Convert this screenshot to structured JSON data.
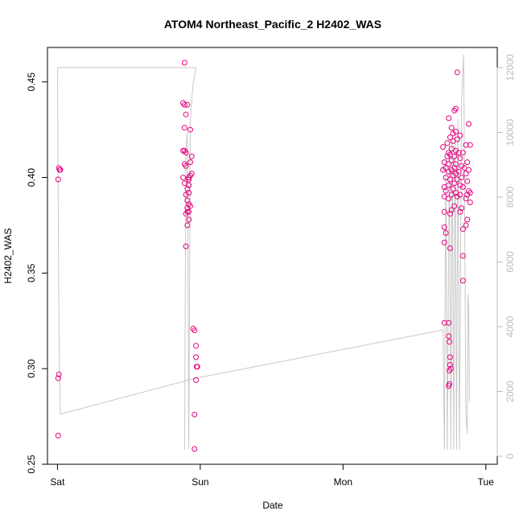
{
  "chart_data": {
    "type": "scatter",
    "title": "ATOM4 Northeast_Pacific_2 H2402_WAS",
    "xlabel": "Date",
    "ylabel": "H2402_WAS",
    "x_ticks": [
      "Sat",
      "Sun",
      "Mon",
      "Tue"
    ],
    "y_ticks": [
      "0.25",
      "0.30",
      "0.35",
      "0.40",
      "0.45"
    ],
    "y_ticks_right": [
      "0",
      "2000",
      "4000",
      "6000",
      "8000",
      "10000",
      "12000"
    ],
    "xlim": [
      -0.07,
      3.08
    ],
    "ylim": [
      0.25,
      0.468
    ],
    "ylim_right": [
      0,
      12000
    ],
    "point_color": "#e6007e",
    "line_color": "#c8c8c8",
    "grid": false,
    "points": [
      {
        "x": 0.01,
        "y": 0.405
      },
      {
        "x": 0.015,
        "y": 0.404
      },
      {
        "x": 0.02,
        "y": 0.404
      },
      {
        "x": 0.005,
        "y": 0.399
      },
      {
        "x": 0.01,
        "y": 0.297
      },
      {
        "x": 0.005,
        "y": 0.295
      },
      {
        "x": 0.005,
        "y": 0.265
      },
      {
        "x": 0.89,
        "y": 0.46
      },
      {
        "x": 0.88,
        "y": 0.439
      },
      {
        "x": 0.89,
        "y": 0.438
      },
      {
        "x": 0.91,
        "y": 0.438
      },
      {
        "x": 0.9,
        "y": 0.433
      },
      {
        "x": 0.89,
        "y": 0.426
      },
      {
        "x": 0.93,
        "y": 0.425
      },
      {
        "x": 0.88,
        "y": 0.414
      },
      {
        "x": 0.89,
        "y": 0.414
      },
      {
        "x": 0.9,
        "y": 0.413
      },
      {
        "x": 0.94,
        "y": 0.411
      },
      {
        "x": 0.89,
        "y": 0.407
      },
      {
        "x": 0.9,
        "y": 0.406
      },
      {
        "x": 0.93,
        "y": 0.408
      },
      {
        "x": 0.94,
        "y": 0.402
      },
      {
        "x": 0.93,
        "y": 0.401
      },
      {
        "x": 0.92,
        "y": 0.4
      },
      {
        "x": 0.88,
        "y": 0.4
      },
      {
        "x": 0.92,
        "y": 0.399
      },
      {
        "x": 0.89,
        "y": 0.397
      },
      {
        "x": 0.92,
        "y": 0.396
      },
      {
        "x": 0.91,
        "y": 0.394
      },
      {
        "x": 0.92,
        "y": 0.392
      },
      {
        "x": 0.9,
        "y": 0.391
      },
      {
        "x": 0.91,
        "y": 0.388
      },
      {
        "x": 0.92,
        "y": 0.386
      },
      {
        "x": 0.93,
        "y": 0.385
      },
      {
        "x": 0.91,
        "y": 0.384
      },
      {
        "x": 0.91,
        "y": 0.382
      },
      {
        "x": 0.9,
        "y": 0.381
      },
      {
        "x": 0.92,
        "y": 0.382
      },
      {
        "x": 0.92,
        "y": 0.378
      },
      {
        "x": 0.91,
        "y": 0.375
      },
      {
        "x": 0.9,
        "y": 0.364
      },
      {
        "x": 0.95,
        "y": 0.321
      },
      {
        "x": 0.96,
        "y": 0.32
      },
      {
        "x": 0.97,
        "y": 0.312
      },
      {
        "x": 0.97,
        "y": 0.306
      },
      {
        "x": 0.98,
        "y": 0.301
      },
      {
        "x": 0.975,
        "y": 0.301
      },
      {
        "x": 0.97,
        "y": 0.294
      },
      {
        "x": 0.96,
        "y": 0.276
      },
      {
        "x": 0.96,
        "y": 0.258
      },
      {
        "x": 2.8,
        "y": 0.455
      },
      {
        "x": 2.79,
        "y": 0.436
      },
      {
        "x": 2.78,
        "y": 0.435
      },
      {
        "x": 2.74,
        "y": 0.431
      },
      {
        "x": 2.88,
        "y": 0.428
      },
      {
        "x": 2.76,
        "y": 0.426
      },
      {
        "x": 2.77,
        "y": 0.423
      },
      {
        "x": 2.79,
        "y": 0.424
      },
      {
        "x": 2.75,
        "y": 0.421
      },
      {
        "x": 2.82,
        "y": 0.422
      },
      {
        "x": 2.8,
        "y": 0.42
      },
      {
        "x": 2.77,
        "y": 0.419
      },
      {
        "x": 2.73,
        "y": 0.418
      },
      {
        "x": 2.86,
        "y": 0.417
      },
      {
        "x": 2.89,
        "y": 0.417
      },
      {
        "x": 2.7,
        "y": 0.416
      },
      {
        "x": 2.76,
        "y": 0.415
      },
      {
        "x": 2.79,
        "y": 0.414
      },
      {
        "x": 2.81,
        "y": 0.413
      },
      {
        "x": 2.74,
        "y": 0.413
      },
      {
        "x": 2.84,
        "y": 0.413
      },
      {
        "x": 2.75,
        "y": 0.412
      },
      {
        "x": 2.78,
        "y": 0.411
      },
      {
        "x": 2.73,
        "y": 0.411
      },
      {
        "x": 2.82,
        "y": 0.41
      },
      {
        "x": 2.76,
        "y": 0.409
      },
      {
        "x": 2.71,
        "y": 0.408
      },
      {
        "x": 2.87,
        "y": 0.408
      },
      {
        "x": 2.79,
        "y": 0.407
      },
      {
        "x": 2.74,
        "y": 0.407
      },
      {
        "x": 2.83,
        "y": 0.406
      },
      {
        "x": 2.78,
        "y": 0.405
      },
      {
        "x": 2.72,
        "y": 0.405
      },
      {
        "x": 2.85,
        "y": 0.405
      },
      {
        "x": 2.88,
        "y": 0.404
      },
      {
        "x": 2.76,
        "y": 0.404
      },
      {
        "x": 2.7,
        "y": 0.404
      },
      {
        "x": 2.81,
        "y": 0.403
      },
      {
        "x": 2.74,
        "y": 0.403
      },
      {
        "x": 2.86,
        "y": 0.402
      },
      {
        "x": 2.79,
        "y": 0.402
      },
      {
        "x": 2.77,
        "y": 0.401
      },
      {
        "x": 2.83,
        "y": 0.4
      },
      {
        "x": 2.72,
        "y": 0.4
      },
      {
        "x": 2.75,
        "y": 0.399
      },
      {
        "x": 2.8,
        "y": 0.399
      },
      {
        "x": 2.87,
        "y": 0.398
      },
      {
        "x": 2.78,
        "y": 0.397
      },
      {
        "x": 2.74,
        "y": 0.396
      },
      {
        "x": 2.82,
        "y": 0.396
      },
      {
        "x": 2.71,
        "y": 0.395
      },
      {
        "x": 2.84,
        "y": 0.395
      },
      {
        "x": 2.77,
        "y": 0.394
      },
      {
        "x": 2.72,
        "y": 0.393
      },
      {
        "x": 2.88,
        "y": 0.393
      },
      {
        "x": 2.79,
        "y": 0.392
      },
      {
        "x": 2.89,
        "y": 0.392
      },
      {
        "x": 2.76,
        "y": 0.391
      },
      {
        "x": 2.82,
        "y": 0.391
      },
      {
        "x": 2.87,
        "y": 0.391
      },
      {
        "x": 2.71,
        "y": 0.39
      },
      {
        "x": 2.8,
        "y": 0.39
      },
      {
        "x": 2.74,
        "y": 0.389
      },
      {
        "x": 2.86,
        "y": 0.389
      },
      {
        "x": 2.89,
        "y": 0.387
      },
      {
        "x": 2.78,
        "y": 0.385
      },
      {
        "x": 2.83,
        "y": 0.384
      },
      {
        "x": 2.76,
        "y": 0.383
      },
      {
        "x": 2.82,
        "y": 0.382
      },
      {
        "x": 2.71,
        "y": 0.382
      },
      {
        "x": 2.75,
        "y": 0.381
      },
      {
        "x": 2.87,
        "y": 0.378
      },
      {
        "x": 2.86,
        "y": 0.375
      },
      {
        "x": 2.84,
        "y": 0.373
      },
      {
        "x": 2.71,
        "y": 0.374
      },
      {
        "x": 2.72,
        "y": 0.371
      },
      {
        "x": 2.71,
        "y": 0.366
      },
      {
        "x": 2.75,
        "y": 0.363
      },
      {
        "x": 2.84,
        "y": 0.359
      },
      {
        "x": 2.84,
        "y": 0.346
      },
      {
        "x": 2.71,
        "y": 0.324
      },
      {
        "x": 2.74,
        "y": 0.324
      },
      {
        "x": 2.74,
        "y": 0.317
      },
      {
        "x": 2.745,
        "y": 0.314
      },
      {
        "x": 2.75,
        "y": 0.306
      },
      {
        "x": 2.75,
        "y": 0.302
      },
      {
        "x": 2.755,
        "y": 0.3
      },
      {
        "x": 2.745,
        "y": 0.299
      },
      {
        "x": 2.745,
        "y": 0.292
      },
      {
        "x": 2.74,
        "y": 0.291
      }
    ],
    "line_series": [
      {
        "x": 0.0,
        "y": 12000
      },
      {
        "x": 0.005,
        "y": 8000
      },
      {
        "x": 0.01,
        "y": 4000
      },
      {
        "x": 0.02,
        "y": 1300
      },
      {
        "x": 0.96,
        "y": 2400
      },
      {
        "x": 2.7,
        "y": 3900
      },
      {
        "x": 2.71,
        "y": 200
      },
      {
        "x": 2.72,
        "y": 9200
      },
      {
        "x": 2.73,
        "y": 200
      },
      {
        "x": 2.745,
        "y": 9600
      },
      {
        "x": 2.755,
        "y": 200
      },
      {
        "x": 2.765,
        "y": 9800
      },
      {
        "x": 2.775,
        "y": 200
      },
      {
        "x": 2.785,
        "y": 10000
      },
      {
        "x": 2.795,
        "y": 200
      },
      {
        "x": 2.805,
        "y": 10400
      },
      {
        "x": 2.815,
        "y": 200
      },
      {
        "x": 2.83,
        "y": 11000
      },
      {
        "x": 2.845,
        "y": 12400
      },
      {
        "x": 2.86,
        "y": 1300
      },
      {
        "x": 2.87,
        "y": 700
      },
      {
        "x": 2.875,
        "y": 5000
      },
      {
        "x": 2.88,
        "y": 4500
      },
      {
        "x": 2.885,
        "y": 1700
      }
    ],
    "line_segments_sun": [
      {
        "x": 0.89,
        "y": 200
      },
      {
        "x": 0.9,
        "y": 9500
      },
      {
        "x": 0.91,
        "y": 10000
      },
      {
        "x": 0.92,
        "y": 200
      },
      {
        "x": 0.93,
        "y": 10200
      },
      {
        "x": 0.94,
        "y": 11000
      },
      {
        "x": 0.95,
        "y": 11500
      },
      {
        "x": 0.97,
        "y": 12000
      }
    ],
    "top_line": [
      {
        "x": 0.0,
        "y": 12000
      },
      {
        "x": 0.97,
        "y": 12000
      }
    ]
  }
}
